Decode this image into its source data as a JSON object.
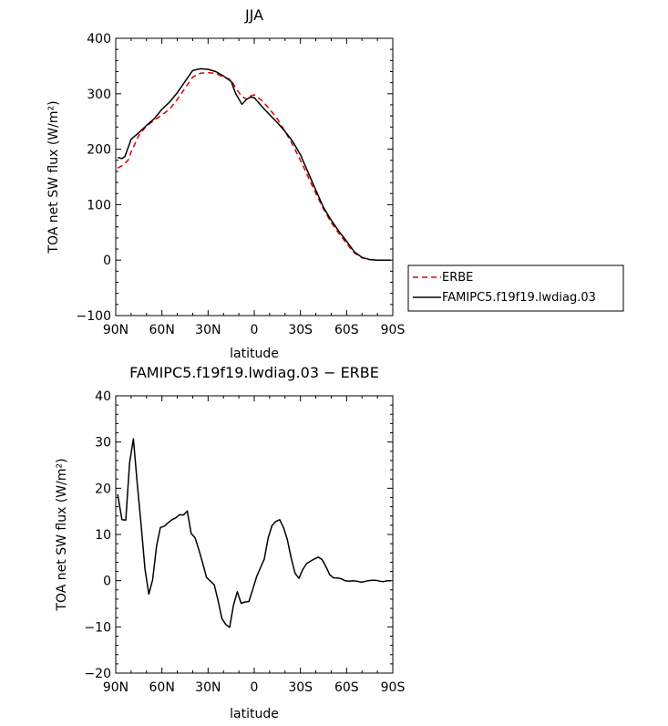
{
  "chart_data": [
    {
      "type": "line",
      "title": "JJA",
      "xlabel": "latitude",
      "ylabel": "TOA net SW flux (W/m²)",
      "xlim": [
        90,
        -90
      ],
      "ylim": [
        -100,
        400
      ],
      "xticks": [
        90,
        60,
        30,
        0,
        -30,
        -60,
        -90
      ],
      "xtick_labels": [
        "90N",
        "60N",
        "30N",
        "0",
        "30S",
        "60S",
        "90S"
      ],
      "yticks": [
        -100,
        0,
        100,
        200,
        300,
        400
      ],
      "ytick_labels": [
        "−100",
        "0",
        "100",
        "200",
        "300",
        "400"
      ],
      "grid": false,
      "legend": "right",
      "series": [
        {
          "name": "ERBE",
          "color": "#e00000",
          "dash": true,
          "points": [
            [
              88.75,
              166
            ],
            [
              86,
              170
            ],
            [
              82,
              180
            ],
            [
              80,
              195
            ],
            [
              75,
              225
            ],
            [
              70,
              242
            ],
            [
              65,
              252
            ],
            [
              60,
              262
            ],
            [
              55,
              272
            ],
            [
              50,
              290
            ],
            [
              45,
              310
            ],
            [
              40,
              330
            ],
            [
              35,
              337
            ],
            [
              30,
              338
            ],
            [
              25,
              337
            ],
            [
              20,
              330
            ],
            [
              15,
              325
            ],
            [
              12,
              310
            ],
            [
              8,
              295
            ],
            [
              5,
              290
            ],
            [
              2.5,
              296
            ],
            [
              0,
              298
            ],
            [
              -2.5,
              293
            ],
            [
              -5,
              288
            ],
            [
              -10,
              272
            ],
            [
              -15,
              255
            ],
            [
              -20,
              232
            ],
            [
              -25,
              208
            ],
            [
              -30,
              180
            ],
            [
              -35,
              150
            ],
            [
              -40,
              120
            ],
            [
              -45,
              92
            ],
            [
              -50,
              68
            ],
            [
              -55,
              48
            ],
            [
              -60,
              30
            ],
            [
              -65,
              13
            ],
            [
              -70,
              4
            ],
            [
              -75,
              1
            ],
            [
              -80,
              0
            ],
            [
              -85,
              0
            ],
            [
              -88.75,
              0
            ]
          ]
        },
        {
          "name": "FAMIPC5.f19f19.lwdiag.03",
          "color": "#000000",
          "dash": false,
          "points": [
            [
              88.75,
              185
            ],
            [
              86,
              183
            ],
            [
              84,
              187
            ],
            [
              80,
              218
            ],
            [
              75,
              230
            ],
            [
              70,
              243
            ],
            [
              65,
              255
            ],
            [
              60,
              272
            ],
            [
              55,
              285
            ],
            [
              50,
              302
            ],
            [
              45,
              322
            ],
            [
              40,
              342
            ],
            [
              35,
              345
            ],
            [
              30,
              344
            ],
            [
              25,
              340
            ],
            [
              20,
              332
            ],
            [
              15,
              322
            ],
            [
              12,
              300
            ],
            [
              8,
              281
            ],
            [
              5,
              290
            ],
            [
              2.5,
              294
            ],
            [
              0,
              293
            ],
            [
              -2.5,
              285
            ],
            [
              -5,
              277
            ],
            [
              -10,
              262
            ],
            [
              -15,
              248
            ],
            [
              -20,
              232
            ],
            [
              -25,
              214
            ],
            [
              -30,
              190
            ],
            [
              -35,
              158
            ],
            [
              -40,
              126
            ],
            [
              -45,
              95
            ],
            [
              -50,
              72
            ],
            [
              -55,
              52
            ],
            [
              -60,
              34
            ],
            [
              -65,
              15
            ],
            [
              -70,
              5
            ],
            [
              -75,
              1
            ],
            [
              -80,
              0
            ],
            [
              -85,
              0
            ],
            [
              -88.75,
              0
            ]
          ]
        }
      ]
    },
    {
      "type": "line",
      "title": "FAMIPC5.f19f19.lwdiag.03 − ERBE",
      "xlabel": "latitude",
      "ylabel": "TOA net SW flux (W/m²)",
      "xlim": [
        90,
        -90
      ],
      "ylim": [
        -20,
        40
      ],
      "xticks": [
        90,
        60,
        30,
        0,
        -30,
        -60,
        -90
      ],
      "xtick_labels": [
        "90N",
        "60N",
        "30N",
        "0",
        "30S",
        "60S",
        "90S"
      ],
      "yticks": [
        -20,
        -10,
        0,
        10,
        20,
        30,
        40
      ],
      "ytick_labels": [
        "−20",
        "−10",
        "0",
        "10",
        "20",
        "30",
        "40"
      ],
      "grid": false,
      "series": [
        {
          "name": "",
          "color": "#000000",
          "dash": false,
          "points": [
            [
              88.75,
              18.7
            ],
            [
              86,
              13.2
            ],
            [
              83.5,
              13.1
            ],
            [
              81,
              25.5
            ],
            [
              78.5,
              30.7
            ],
            [
              76,
              21
            ],
            [
              73.5,
              12
            ],
            [
              71,
              2.5
            ],
            [
              68.5,
              -2.9
            ],
            [
              66,
              0.2
            ],
            [
              63.5,
              7.5
            ],
            [
              61,
              11.5
            ],
            [
              58.5,
              11.8
            ],
            [
              56,
              12.5
            ],
            [
              53.5,
              13.2
            ],
            [
              51,
              13.6
            ],
            [
              48.5,
              14.3
            ],
            [
              46,
              14.2
            ],
            [
              43.5,
              15.1
            ],
            [
              41,
              10.2
            ],
            [
              38.5,
              9.3
            ],
            [
              36,
              6.7
            ],
            [
              33.5,
              3.8
            ],
            [
              31,
              0.7
            ],
            [
              28.5,
              -0.1
            ],
            [
              26,
              -0.9
            ],
            [
              23.5,
              -4.3
            ],
            [
              21,
              -8.2
            ],
            [
              18.5,
              -9.5
            ],
            [
              16,
              -10.1
            ],
            [
              13.5,
              -5.3
            ],
            [
              11,
              -2.4
            ],
            [
              8.5,
              -4.9
            ],
            [
              6,
              -4.6
            ],
            [
              3.5,
              -4.5
            ],
            [
              1,
              -1.9
            ],
            [
              -1.5,
              0.8
            ],
            [
              -4,
              2.8
            ],
            [
              -6.5,
              4.7
            ],
            [
              -9,
              9.2
            ],
            [
              -11.5,
              11.9
            ],
            [
              -14,
              12.8
            ],
            [
              -16.5,
              13.2
            ],
            [
              -19,
              11.5
            ],
            [
              -21.5,
              8.9
            ],
            [
              -24,
              4.9
            ],
            [
              -26.5,
              1.6
            ],
            [
              -29,
              0.5
            ],
            [
              -31.5,
              2.4
            ],
            [
              -34,
              3.7
            ],
            [
              -36.5,
              4.2
            ],
            [
              -39,
              4.7
            ],
            [
              -41.5,
              5.1
            ],
            [
              -44,
              4.6
            ],
            [
              -46.5,
              3.1
            ],
            [
              -49,
              1.3
            ],
            [
              -51.5,
              0.6
            ],
            [
              -54,
              0.6
            ],
            [
              -56.5,
              0.4
            ],
            [
              -59,
              0
            ],
            [
              -61.5,
              -0.1
            ],
            [
              -64,
              0
            ],
            [
              -66.5,
              -0.1
            ],
            [
              -69,
              -0.3
            ],
            [
              -71.5,
              -0.2
            ],
            [
              -74,
              0
            ],
            [
              -76.5,
              0.1
            ],
            [
              -79,
              0.1
            ],
            [
              -81.5,
              -0.1
            ],
            [
              -84,
              -0.2
            ],
            [
              -86.5,
              0
            ],
            [
              -88.75,
              0
            ]
          ]
        }
      ]
    }
  ]
}
